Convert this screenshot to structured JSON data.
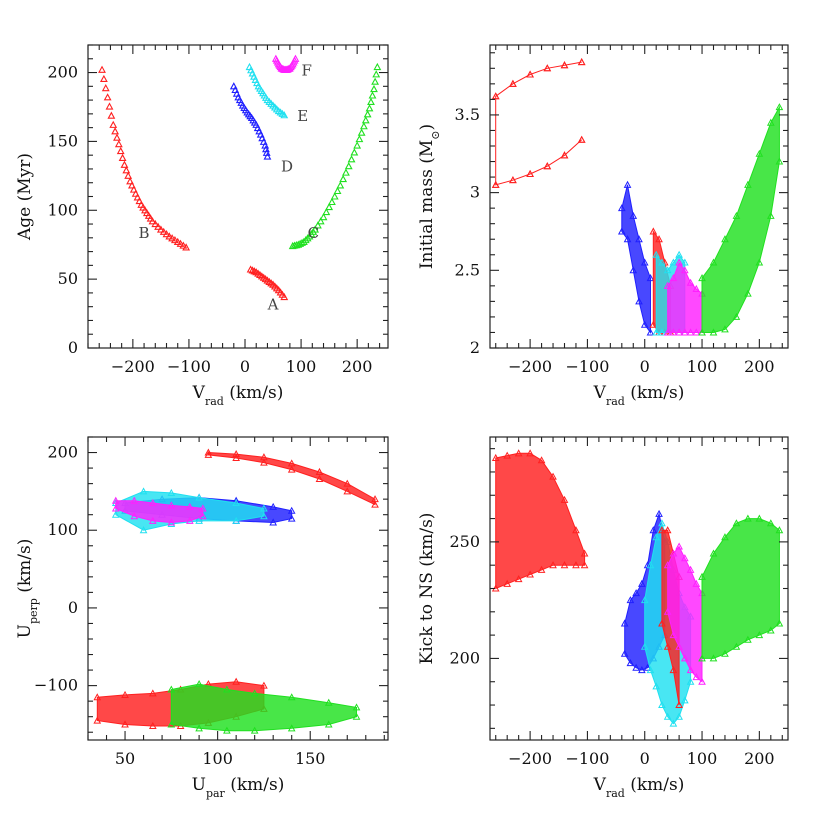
{
  "chart_data": [
    {
      "type": "scatter",
      "title": "",
      "xlabel": "V_rad (km/s)",
      "ylabel": "Age (Myr)",
      "xlabel_parts": {
        "main": "V",
        "sub": "rad",
        "rest": " (km/s)"
      },
      "ylabel_parts": {
        "main": "Age (Myr)"
      },
      "xlim": [
        -280,
        255
      ],
      "ylim": [
        0,
        220
      ],
      "xticks": [
        -200,
        -100,
        0,
        100,
        200
      ],
      "xtick_labels": [
        "−200",
        "−100",
        "0",
        "100",
        "200"
      ],
      "yticks": [
        0,
        50,
        100,
        150,
        200
      ],
      "ytick_labels": [
        "0",
        "50",
        "100",
        "150",
        "200"
      ],
      "series": [
        {
          "name": "A",
          "color": "#ff2020",
          "x": [
            10,
            20,
            30,
            40,
            50,
            60,
            70
          ],
          "y": [
            57,
            55,
            52,
            49,
            46,
            42,
            37
          ]
        },
        {
          "name": "B",
          "color": "#ff2020",
          "x": [
            -255,
            -245,
            -235,
            -225,
            -215,
            -205,
            -195,
            -185,
            -175,
            -165,
            -150,
            -135,
            -120,
            -105
          ],
          "y": [
            202,
            182,
            162,
            148,
            133,
            121,
            112,
            104,
            98,
            92,
            86,
            81,
            77,
            73
          ]
        },
        {
          "name": "C",
          "color": "#20e020",
          "x": [
            85,
            95,
            105,
            115,
            125,
            140,
            155,
            170,
            185,
            200,
            212,
            222,
            230,
            236
          ],
          "y": [
            74,
            75,
            77,
            81,
            86,
            95,
            106,
            118,
            132,
            147,
            161,
            174,
            188,
            204
          ]
        },
        {
          "name": "D",
          "color": "#2020ff",
          "x": [
            -20,
            -12,
            -4,
            4,
            12,
            20,
            28,
            36,
            40
          ],
          "y": [
            190,
            182,
            176,
            171,
            167,
            162,
            155,
            147,
            139
          ]
        },
        {
          "name": "E",
          "color": "#20e0f0",
          "x": [
            8,
            16,
            24,
            32,
            40,
            50,
            60,
            70
          ],
          "y": [
            204,
            197,
            190,
            185,
            180,
            176,
            172,
            169
          ]
        },
        {
          "name": "F",
          "color": "#ff20ff",
          "x": [
            55,
            60,
            65,
            70,
            75,
            80,
            85,
            90
          ],
          "y": [
            210,
            206,
            203,
            202,
            202,
            203,
            206,
            210
          ]
        }
      ],
      "annotations": [
        {
          "text": "A",
          "x": 50,
          "y": 28
        },
        {
          "text": "B",
          "x": -180,
          "y": 80
        },
        {
          "text": "C",
          "x": 122,
          "y": 80
        },
        {
          "text": "D",
          "x": 75,
          "y": 128
        },
        {
          "text": "E",
          "x": 103,
          "y": 165
        },
        {
          "text": "F",
          "x": 110,
          "y": 198
        }
      ]
    },
    {
      "type": "scatter",
      "title": "",
      "xlabel": "V_rad (km/s)",
      "ylabel": "Initial mass (M_⊙)",
      "xlabel_parts": {
        "main": "V",
        "sub": "rad",
        "rest": " (km/s)"
      },
      "ylabel_parts": {
        "main": "Initial mass (M",
        "sub": "⊙",
        "rest": ")"
      },
      "xlim": [
        -270,
        250
      ],
      "ylim": [
        2,
        3.95
      ],
      "xticks": [
        -200,
        -100,
        0,
        100,
        200
      ],
      "xtick_labels": [
        "−200",
        "−100",
        "0",
        "100",
        "200"
      ],
      "yticks": [
        2,
        2.5,
        3,
        3.5
      ],
      "ytick_labels": [
        "2",
        "2.5",
        "3",
        "3.5"
      ],
      "series": [
        {
          "name": "red group",
          "color": "#ff2020",
          "x": [
            -260,
            -230,
            -200,
            -170,
            -140,
            -110,
            -110,
            -140,
            -170,
            -200,
            -230,
            -260
          ],
          "y_low": [
            3.05,
            3.08,
            3.12,
            3.17,
            3.24,
            3.34,
            3.34,
            3.24,
            3.17,
            3.12,
            3.08,
            3.05
          ],
          "y_high": [
            3.62,
            3.7,
            3.76,
            3.8,
            3.82,
            3.84,
            3.84,
            3.82,
            3.8,
            3.76,
            3.7,
            3.62
          ]
        },
        {
          "name": "blue group",
          "color": "#2020ff",
          "x": [
            -40,
            -30,
            -20,
            -10,
            0,
            10
          ],
          "y_low": [
            2.75,
            2.7,
            2.5,
            2.3,
            2.15,
            2.1
          ],
          "y_high": [
            2.9,
            3.05,
            2.85,
            2.7,
            2.55,
            2.45
          ]
        },
        {
          "name": "red small group",
          "color": "#ff2020",
          "x": [
            15,
            25,
            35,
            45
          ],
          "y_low": [
            2.15,
            2.1,
            2.1,
            2.1
          ],
          "y_high": [
            2.75,
            2.7,
            2.55,
            2.4
          ]
        },
        {
          "name": "cyan group",
          "color": "#20e0f0",
          "x": [
            20,
            30,
            40,
            50,
            60,
            70
          ],
          "y_low": [
            2.1,
            2.1,
            2.1,
            2.1,
            2.1,
            2.1
          ],
          "y_high": [
            2.6,
            2.55,
            2.5,
            2.55,
            2.6,
            2.55
          ]
        },
        {
          "name": "magenta group",
          "color": "#ff20ff",
          "x": [
            40,
            50,
            60,
            70,
            80,
            90,
            100
          ],
          "y_low": [
            2.1,
            2.1,
            2.1,
            2.1,
            2.1,
            2.1,
            2.1
          ],
          "y_high": [
            2.4,
            2.45,
            2.55,
            2.5,
            2.42,
            2.38,
            2.35
          ]
        },
        {
          "name": "green group",
          "color": "#20e020",
          "x": [
            100,
            120,
            140,
            160,
            180,
            200,
            220,
            235
          ],
          "y_low": [
            2.1,
            2.1,
            2.12,
            2.2,
            2.35,
            2.55,
            2.85,
            3.2
          ],
          "y_high": [
            2.45,
            2.55,
            2.7,
            2.85,
            3.05,
            3.25,
            3.45,
            3.55
          ]
        }
      ]
    },
    {
      "type": "scatter",
      "title": "",
      "xlabel": "U_par (km/s)",
      "ylabel": "U_perp (km/s)",
      "xlabel_parts": {
        "main": "U",
        "sub": "par",
        "rest": " (km/s)"
      },
      "ylabel_parts": {
        "main": "U",
        "sub": "perp",
        "rest": " (km/s)"
      },
      "xlim": [
        30,
        192
      ],
      "ylim": [
        -170,
        220
      ],
      "xticks": [
        50,
        100,
        150
      ],
      "xtick_labels": [
        "50",
        "100",
        "150"
      ],
      "yticks": [
        -100,
        0,
        100,
        200
      ],
      "ytick_labels": [
        "−100",
        "0",
        "100",
        "200"
      ],
      "series": [
        {
          "name": "red upper band",
          "color": "#ff2020",
          "x": [
            95,
            110,
            125,
            140,
            155,
            170,
            185
          ],
          "y_low": [
            197,
            193,
            187,
            178,
            166,
            150,
            133
          ],
          "y_high": [
            200,
            198,
            194,
            186,
            175,
            160,
            140
          ]
        },
        {
          "name": "blue upper band",
          "color": "#2020ff",
          "x": [
            50,
            70,
            90,
            110,
            130,
            140
          ],
          "y_low": [
            125,
            120,
            115,
            112,
            110,
            115
          ],
          "y_high": [
            135,
            140,
            142,
            138,
            130,
            125
          ]
        },
        {
          "name": "cyan upper band",
          "color": "#20e0f0",
          "x": [
            45,
            60,
            75,
            90,
            110,
            125
          ],
          "y_low": [
            120,
            100,
            108,
            112,
            112,
            118
          ],
          "y_high": [
            135,
            150,
            148,
            142,
            135,
            128
          ]
        },
        {
          "name": "magenta upper band",
          "color": "#ff20ff",
          "x": [
            45,
            55,
            65,
            75,
            85,
            92
          ],
          "y_low": [
            128,
            118,
            112,
            110,
            112,
            118
          ],
          "y_high": [
            138,
            138,
            135,
            132,
            130,
            128
          ]
        },
        {
          "name": "red lower band",
          "color": "#ff2020",
          "x": [
            35,
            50,
            65,
            80,
            95,
            110,
            125
          ],
          "y_low": [
            -145,
            -150,
            -152,
            -152,
            -148,
            -140,
            -130
          ],
          "y_high": [
            -115,
            -112,
            -110,
            -105,
            -98,
            -95,
            -100
          ]
        },
        {
          "name": "green lower band",
          "color": "#20e020",
          "x": [
            75,
            90,
            105,
            120,
            140,
            160,
            175
          ],
          "y_low": [
            -150,
            -155,
            -158,
            -158,
            -155,
            -150,
            -140
          ],
          "y_high": [
            -105,
            -98,
            -105,
            -110,
            -115,
            -122,
            -128
          ]
        }
      ]
    },
    {
      "type": "scatter",
      "title": "",
      "xlabel": "V_rad (km/s)",
      "ylabel": "Kick to NS (km/s)",
      "xlabel_parts": {
        "main": "V",
        "sub": "rad",
        "rest": " (km/s)"
      },
      "ylabel_parts": {
        "main": "Kick to NS (km/s)"
      },
      "xlim": [
        -270,
        250
      ],
      "ylim": [
        165,
        295
      ],
      "xticks": [
        -200,
        -100,
        0,
        100,
        200
      ],
      "xtick_labels": [
        "−200",
        "−100",
        "0",
        "100",
        "200"
      ],
      "yticks": [
        200,
        250
      ],
      "ytick_labels": [
        "200",
        "250"
      ],
      "series": [
        {
          "name": "red group",
          "color": "#ff2020",
          "x": [
            -260,
            -240,
            -220,
            -200,
            -180,
            -160,
            -140,
            -120,
            -105
          ],
          "y_low": [
            230,
            232,
            234,
            236,
            238,
            240,
            240,
            240,
            240
          ],
          "y_high": [
            286,
            287,
            288,
            288,
            285,
            278,
            268,
            255,
            245
          ]
        },
        {
          "name": "blue group",
          "color": "#2020ff",
          "x": [
            -35,
            -25,
            -15,
            -5,
            5,
            15,
            25,
            35
          ],
          "y_low": [
            202,
            198,
            196,
            195,
            196,
            200,
            205,
            210
          ],
          "y_high": [
            215,
            225,
            228,
            232,
            240,
            255,
            262,
            250
          ]
        },
        {
          "name": "cyan group",
          "color": "#20e0f0",
          "x": [
            0,
            10,
            20,
            30,
            40,
            50,
            60,
            70,
            80
          ],
          "y_low": [
            205,
            195,
            188,
            180,
            175,
            172,
            175,
            182,
            190
          ],
          "y_high": [
            225,
            240,
            252,
            258,
            250,
            238,
            228,
            222,
            218
          ]
        },
        {
          "name": "red middle group",
          "color": "#ff2020",
          "x": [
            30,
            40,
            50,
            60
          ],
          "y_low": [
            215,
            205,
            195,
            180
          ],
          "y_high": [
            255,
            255,
            245,
            235
          ]
        },
        {
          "name": "magenta group",
          "color": "#ff20ff",
          "x": [
            40,
            50,
            60,
            70,
            80,
            90,
            100
          ],
          "y_low": [
            220,
            210,
            205,
            200,
            195,
            192,
            190
          ],
          "y_high": [
            240,
            245,
            248,
            243,
            238,
            232,
            228
          ]
        },
        {
          "name": "green group",
          "color": "#20e020",
          "x": [
            100,
            120,
            140,
            160,
            180,
            200,
            220,
            235
          ],
          "y_low": [
            200,
            200,
            202,
            205,
            208,
            210,
            212,
            215
          ],
          "y_high": [
            235,
            245,
            252,
            258,
            260,
            260,
            258,
            255
          ]
        }
      ]
    }
  ]
}
